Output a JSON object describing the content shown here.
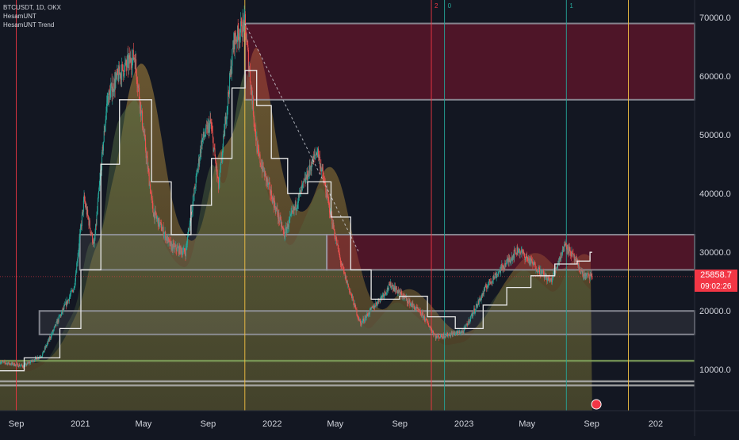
{
  "legend": {
    "symbol_line": "BTCUSDT, 1D, OKX",
    "indicator_1": "HesamUNT",
    "indicator_2": "HesamUNT Trend"
  },
  "last_price": "25858.7",
  "countdown": "09:02:26",
  "colors": {
    "background": "#131722",
    "candle_up": "#26a69a",
    "candle_down": "#ef5350",
    "zone_red": "#f23645",
    "zone_neutral": "#9598a1",
    "trend_line": "#e0e0e0",
    "fill_warm": "#b08a3e"
  },
  "chart_data": {
    "type": "candlestick",
    "title": "",
    "xlabel": "",
    "ylabel": "",
    "x_ticks": [
      "Sep",
      "2021",
      "May",
      "Sep",
      "2022",
      "May",
      "Sep",
      "2023",
      "May",
      "Sep",
      "202"
    ],
    "y_ticks": [
      "70000.0",
      "60000.0",
      "50000.0",
      "40000.0",
      "30000.0",
      "20000.0",
      "10000.0"
    ],
    "ylim": [
      3000,
      73000
    ],
    "x_range": [
      "2020-08-01",
      "2024-03-15"
    ],
    "price_path": [
      {
        "date": "2020-08-01",
        "price": 11300
      },
      {
        "date": "2020-09-15",
        "price": 10600
      },
      {
        "date": "2020-10-20",
        "price": 12500
      },
      {
        "date": "2020-11-20",
        "price": 18500
      },
      {
        "date": "2020-12-20",
        "price": 24000
      },
      {
        "date": "2021-01-08",
        "price": 39000
      },
      {
        "date": "2021-01-27",
        "price": 31000
      },
      {
        "date": "2021-02-21",
        "price": 56000
      },
      {
        "date": "2021-03-13",
        "price": 60000
      },
      {
        "date": "2021-04-14",
        "price": 63500
      },
      {
        "date": "2021-05-19",
        "price": 37000
      },
      {
        "date": "2021-06-22",
        "price": 31000
      },
      {
        "date": "2021-07-20",
        "price": 30000
      },
      {
        "date": "2021-08-20",
        "price": 49000
      },
      {
        "date": "2021-09-06",
        "price": 52000
      },
      {
        "date": "2021-09-21",
        "price": 41000
      },
      {
        "date": "2021-10-20",
        "price": 66000
      },
      {
        "date": "2021-11-10",
        "price": 69000
      },
      {
        "date": "2021-12-04",
        "price": 47000
      },
      {
        "date": "2022-01-24",
        "price": 33000
      },
      {
        "date": "2022-03-28",
        "price": 47500
      },
      {
        "date": "2022-05-12",
        "price": 28000
      },
      {
        "date": "2022-06-18",
        "price": 17800
      },
      {
        "date": "2022-08-15",
        "price": 24500
      },
      {
        "date": "2022-10-15",
        "price": 19200
      },
      {
        "date": "2022-11-09",
        "price": 15500
      },
      {
        "date": "2022-12-31",
        "price": 16500
      },
      {
        "date": "2023-02-15",
        "price": 24500
      },
      {
        "date": "2023-04-14",
        "price": 30500
      },
      {
        "date": "2023-06-15",
        "price": 25000
      },
      {
        "date": "2023-07-13",
        "price": 31500
      },
      {
        "date": "2023-08-17",
        "price": 26000
      },
      {
        "date": "2023-09-02",
        "price": 25858.7
      }
    ],
    "trend_path": [
      {
        "date": "2020-08-01",
        "value": 9800
      },
      {
        "date": "2020-11-01",
        "value": 12000
      },
      {
        "date": "2020-12-15",
        "value": 17000
      },
      {
        "date": "2021-01-20",
        "value": 27000
      },
      {
        "date": "2021-03-01",
        "value": 45000
      },
      {
        "date": "2021-04-01",
        "value": 56000
      },
      {
        "date": "2021-05-01",
        "value": 56000
      },
      {
        "date": "2021-06-01",
        "value": 42000
      },
      {
        "date": "2021-07-15",
        "value": 33000
      },
      {
        "date": "2021-08-15",
        "value": 38000
      },
      {
        "date": "2021-10-01",
        "value": 46000
      },
      {
        "date": "2021-11-01",
        "value": 58000
      },
      {
        "date": "2021-11-20",
        "value": 61000
      },
      {
        "date": "2021-12-15",
        "value": 55000
      },
      {
        "date": "2022-01-15",
        "value": 46000
      },
      {
        "date": "2022-02-15",
        "value": 40000
      },
      {
        "date": "2022-04-01",
        "value": 42000
      },
      {
        "date": "2022-05-15",
        "value": 36000
      },
      {
        "date": "2022-06-15",
        "value": 27000
      },
      {
        "date": "2022-08-01",
        "value": 22000
      },
      {
        "date": "2022-10-01",
        "value": 22500
      },
      {
        "date": "2022-11-15",
        "value": 19000
      },
      {
        "date": "2023-01-15",
        "value": 17000
      },
      {
        "date": "2023-03-01",
        "value": 21000
      },
      {
        "date": "2023-04-15",
        "value": 24000
      },
      {
        "date": "2023-06-01",
        "value": 26000
      },
      {
        "date": "2023-07-15",
        "value": 28000
      },
      {
        "date": "2023-08-25",
        "value": 28500
      },
      {
        "date": "2023-09-02",
        "value": 30000
      }
    ],
    "zones": [
      {
        "kind": "red",
        "x_start": "2021-11-10",
        "x_end": "2024-03-15",
        "y_low": 56000,
        "y_high": 69000
      },
      {
        "kind": "neutral",
        "x_start": "2020-12-31",
        "x_end": "2022-04-15",
        "y_low": 27000,
        "y_high": 33000
      },
      {
        "kind": "red",
        "x_start": "2022-04-15",
        "x_end": "2024-03-15",
        "y_low": 27000,
        "y_high": 33000
      },
      {
        "kind": "neutral",
        "x_start": "2020-10-15",
        "x_end": "2024-03-15",
        "y_low": 16000,
        "y_high": 20000
      }
    ],
    "horizontal_levels": [
      {
        "y": 11500,
        "x_start": "2020-08-01",
        "x_end": "2024-03-15",
        "color": "#7fa05a"
      },
      {
        "y": 8000,
        "x_start": "2020-08-01",
        "x_end": "2024-03-15",
        "color": "#b0b0b0"
      },
      {
        "y": 7300,
        "x_start": "2020-08-01",
        "x_end": "2024-03-15",
        "color": "#b0b0b0"
      }
    ],
    "vertical_markers": [
      {
        "date": "2020-09-01",
        "color": "#f23645",
        "label": ""
      },
      {
        "date": "2021-11-10",
        "color": "#f5c242",
        "label": ""
      },
      {
        "date": "2022-10-31",
        "color": "#f23645",
        "label": "2"
      },
      {
        "date": "2022-11-25",
        "color": "#26a69a",
        "label": "0"
      },
      {
        "date": "2023-07-15",
        "color": "#26a69a",
        "label": "1"
      },
      {
        "date": "2023-11-10",
        "color": "#f5c242",
        "label": ""
      }
    ],
    "diagonal_line": {
      "x_start": "2021-11-10",
      "y_start": 69000,
      "x_end": "2022-06-15",
      "y_end": 30000
    }
  }
}
